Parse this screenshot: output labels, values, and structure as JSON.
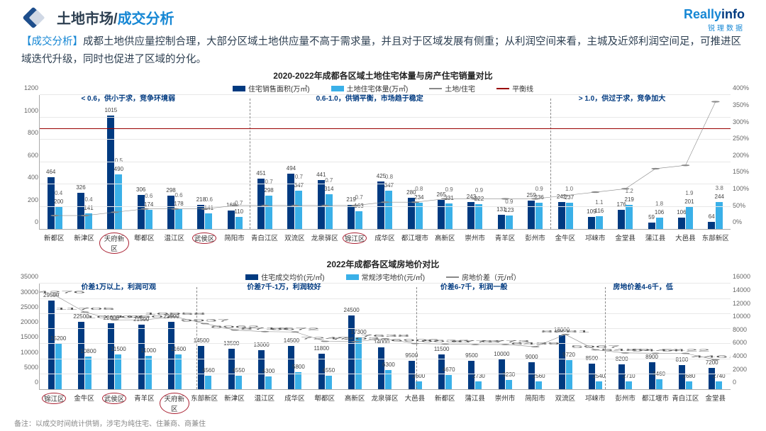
{
  "page_title_part1": "土地市场/",
  "page_title_part2": "成交分析",
  "logo": {
    "part1": "Really",
    "part2": "info",
    "sub": "锐理数据"
  },
  "summary": {
    "tag": "【成交分析】",
    "text": "成都土地供应量控制合理，大部分区域土地供应量不高于需求量，并且对于区域发展有侧重；从利润空间来看，主城及近郊利润空间足，可推进区域迭代升级，同时也促进了区域的分化。"
  },
  "chart1": {
    "title": "2020-2022年成都各区域土地住宅体量与房产住宅销量对比",
    "type": "bar+line",
    "legend": [
      {
        "label": "住宅销售面积(万㎡)",
        "color": "#003a80",
        "kind": "box"
      },
      {
        "label": "土地住宅体量(万㎡)",
        "color": "#3ab0e8",
        "kind": "box"
      },
      {
        "label": "土地/住宅",
        "color": "#888888",
        "kind": "line"
      },
      {
        "label": "平衡线",
        "color": "#990000",
        "kind": "line"
      }
    ],
    "y_left": {
      "max": 1200,
      "step": 200
    },
    "y_right": {
      "max": 400,
      "step": 50,
      "suffix": "%"
    },
    "balance_line_pct": 75,
    "segments": [
      {
        "left_pct": 6,
        "label": "< 0.6，供小于求，竞争环境弱"
      },
      {
        "left_pct": 40,
        "label": "0.6-1.0，供销平衡，市场趋于稳定"
      },
      {
        "left_pct": 78,
        "label": "> 1.0，供过于求，竞争加大"
      }
    ],
    "dividers_pct": [
      30.4,
      73.9
    ],
    "categories": [
      "新都区",
      "新津区",
      "天府新区",
      "郫都区",
      "温江区",
      "武侯区",
      "简阳市",
      "青白江区",
      "双流区",
      "龙泉驿区",
      "锦江区",
      "成华区",
      "都江堰市",
      "高新区",
      "崇州市",
      "青羊区",
      "彭州市",
      "金牛区",
      "邛崃市",
      "金堂县",
      "蒲江县",
      "大邑县",
      "东部新区"
    ],
    "circled_idx": [
      2,
      5,
      10
    ],
    "sales": [
      464,
      326,
      1015,
      306,
      298,
      218,
      168,
      451,
      494,
      441,
      219,
      425,
      280,
      265,
      243,
      131,
      259,
      242,
      109,
      176,
      59,
      106,
      64
    ],
    "land": [
      200,
      141,
      490,
      174,
      178,
      141,
      110,
      298,
      347,
      314,
      163,
      347,
      234,
      231,
      222,
      123,
      236,
      237,
      116,
      219,
      106,
      201,
      244
    ],
    "ratio_lbl": [
      "0.4",
      "0.4",
      "0.5",
      "0.6",
      "0.6",
      "0.6",
      "0.7",
      "0.7",
      "0.7",
      "0.7",
      "0.7",
      "0.8",
      "0.8",
      "0.9",
      "0.9",
      "0.9",
      "0.9",
      "1.0",
      "1.1",
      "1.2",
      "1.8",
      "1.9",
      "3.8"
    ],
    "ratio_pct": [
      10,
      10,
      12.5,
      15,
      15,
      15,
      17.5,
      17.5,
      17.5,
      17.5,
      17.5,
      20,
      20,
      22.5,
      22.5,
      22.5,
      22.5,
      25,
      27.5,
      30,
      45,
      47.5,
      95
    ]
  },
  "chart2": {
    "title": "2022年成都各区域房地价对比",
    "type": "bar+line",
    "legend": [
      {
        "label": "住宅成交均价(元/㎡)",
        "color": "#003a80",
        "kind": "box"
      },
      {
        "label": "常规涉宅地价(元/㎡)",
        "color": "#3ab0e8",
        "kind": "box"
      },
      {
        "label": "房地价差（元/㎡）",
        "color": "#888888",
        "kind": "line"
      }
    ],
    "y_left": {
      "max": 35000,
      "step": 5000
    },
    "y_right": {
      "max": 16000,
      "step": 2000
    },
    "segments": [
      {
        "left_pct": 6,
        "label": "价差1万以上，利润可观"
      },
      {
        "left_pct": 30,
        "label": "价差7千-1万，利润较好"
      },
      {
        "left_pct": 58,
        "label": "价差6-7千，利润一般"
      },
      {
        "left_pct": 83,
        "label": "房地价差4-6千，低"
      }
    ],
    "dividers_pct": [
      22.7,
      54.5,
      81.8
    ],
    "categories": [
      "锦江区",
      "金牛区",
      "武侯区",
      "青羊区",
      "天府新区",
      "东部新区",
      "新津区",
      "温江区",
      "成华区",
      "郫都区",
      "高新区",
      "龙泉驿区",
      "大邑县",
      "新都区",
      "蒲江县",
      "崇州市",
      "简阳市",
      "双流区",
      "邛崃市",
      "彭州市",
      "都江堰市",
      "青白江区",
      "金堂县"
    ],
    "circled_idx": [
      0,
      2,
      4
    ],
    "price": [
      29500,
      22500,
      22000,
      21500,
      22500,
      14500,
      13500,
      13000,
      14500,
      11800,
      24500,
      14000,
      9500,
      11500,
      9500,
      10000,
      9000,
      18000,
      8500,
      8200,
      8900,
      8100,
      7200
    ],
    "land_p": [
      15200,
      10800,
      11500,
      11000,
      11600,
      4560,
      4550,
      4300,
      5800,
      4550,
      17300,
      6300,
      2600,
      4670,
      2730,
      3230,
      2560,
      9720,
      2540,
      2710,
      3460,
      2680,
      2740
    ],
    "diff_lbl": [
      "14276",
      "11705",
      "10501",
      "10507",
      "10958",
      "9937",
      "8962",
      "8716",
      "8672",
      "7247",
      "7203",
      "7638",
      "6906",
      "6838",
      "6773",
      "6773",
      "6439",
      "8281",
      "5967",
      "5489",
      "5444",
      "5422",
      "4461"
    ],
    "diff_pct": [
      89,
      73,
      65.6,
      65.7,
      68.5,
      62.1,
      56,
      54.5,
      54.2,
      45.3,
      45,
      47.7,
      43.2,
      42.7,
      42.3,
      42.3,
      40.2,
      51.8,
      37.3,
      34.3,
      34,
      33.9,
      27.9
    ]
  },
  "footnote": "备注：以成交时间统计供销，涉宅为纯住宅、住兼商、商兼住"
}
